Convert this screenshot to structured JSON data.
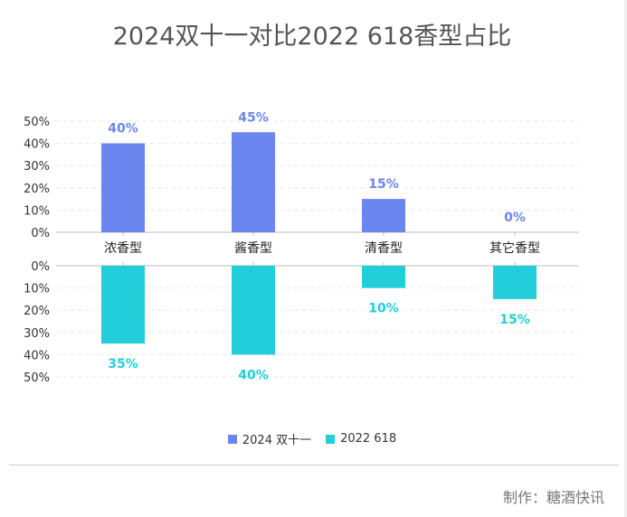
{
  "title": "2024双十一对比2022 618香型占比",
  "credit": "制作：糖酒快讯",
  "colors": {
    "series_a": "#6b86ef",
    "series_b": "#22ced9"
  },
  "chart_data": {
    "type": "bar",
    "categories": [
      "浓香型",
      "酱香型",
      "清香型",
      "其它香型"
    ],
    "series": [
      {
        "name": "2024 双十一",
        "values": [
          40,
          45,
          15,
          0
        ],
        "labels": [
          "40%",
          "45%",
          "15%",
          "0%"
        ]
      },
      {
        "name": "2022 618",
        "values": [
          35,
          40,
          10,
          15
        ],
        "labels": [
          "35%",
          "40%",
          "10%",
          "15%"
        ]
      }
    ],
    "yticks": [
      "0%",
      "10%",
      "20%",
      "30%",
      "40%",
      "50%"
    ],
    "ylim": [
      0,
      50
    ],
    "legend_position": "bottom",
    "grid": true
  }
}
